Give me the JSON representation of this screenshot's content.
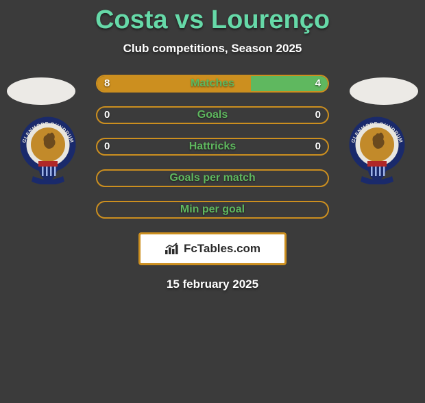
{
  "title_color": "#66d9a8",
  "player_left": "Costa",
  "vs_word": "vs",
  "player_right": "Lourenço",
  "subtitle": "Club competitions, Season 2025",
  "avatar_color": "#eceae6",
  "club_left": {
    "outer_text_top": "GLENMORE DUNDRUM",
    "outer_text_bottom": "F.C.",
    "ring_color": "#e8e6df",
    "ring_band_color": "#1a2a6b",
    "inner_color": "#c28a2a",
    "shield_top": "#b02828",
    "shield_bottom": "#1a2a6b",
    "ribbon_color": "#1a2a6b"
  },
  "club_right": {
    "outer_text_top": "GLENMORE DUNDRUM",
    "outer_text_bottom": "F.C.",
    "ring_color": "#e8e6df",
    "ring_band_color": "#1a2a6b",
    "inner_color": "#c28a2a",
    "shield_top": "#b02828",
    "shield_bottom": "#1a2a6b",
    "ribbon_color": "#1a2a6b"
  },
  "bars": [
    {
      "label": "Matches",
      "left_value": "8",
      "right_value": "4",
      "left_pct": 66.67,
      "right_pct": 33.33,
      "left_color": "#cc8f1f",
      "right_color": "#5fb85f",
      "border_color": "#cc8f1f"
    },
    {
      "label": "Goals",
      "left_value": "0",
      "right_value": "0",
      "left_pct": 0,
      "right_pct": 0,
      "left_color": "#cc8f1f",
      "right_color": "#5fb85f",
      "border_color": "#cc8f1f"
    },
    {
      "label": "Hattricks",
      "left_value": "0",
      "right_value": "0",
      "left_pct": 0,
      "right_pct": 0,
      "left_color": "#cc8f1f",
      "right_color": "#5fb85f",
      "border_color": "#cc8f1f"
    },
    {
      "label": "Goals per match",
      "left_value": "",
      "right_value": "",
      "left_pct": 0,
      "right_pct": 0,
      "left_color": "#cc8f1f",
      "right_color": "#5fb85f",
      "border_color": "#cc8f1f"
    },
    {
      "label": "Min per goal",
      "left_value": "",
      "right_value": "",
      "left_pct": 0,
      "right_pct": 0,
      "left_color": "#cc8f1f",
      "right_color": "#5fb85f",
      "border_color": "#cc8f1f"
    }
  ],
  "attribution": {
    "text": "FcTables.com",
    "border_color": "#cc8f1f",
    "bg_color": "#ffffff",
    "text_color": "#2a2a2a"
  },
  "date": "15 february 2025"
}
